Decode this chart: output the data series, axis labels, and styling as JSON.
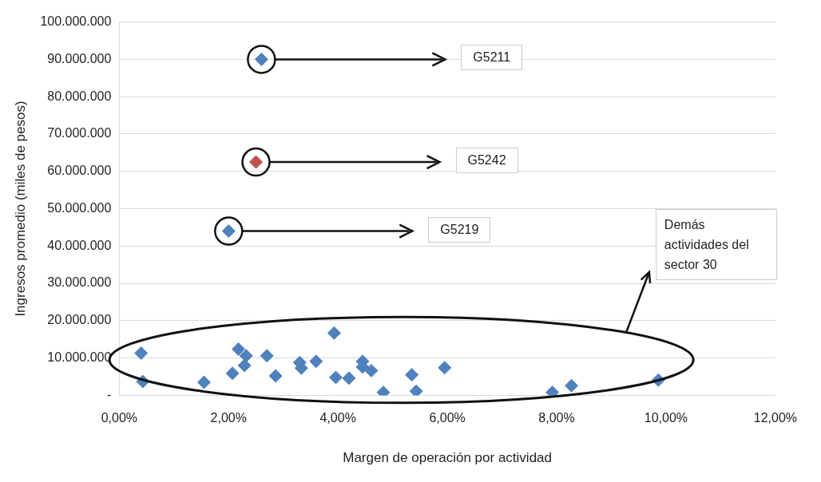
{
  "chart_data": {
    "type": "scatter",
    "xlabel": "Margen de operación por actividad",
    "ylabel": "Ingresos promedio (miles de pesos)",
    "xlim": [
      0,
      12
    ],
    "xticks": [
      {
        "value": 0,
        "label": "0,00%"
      },
      {
        "value": 2,
        "label": "2,00%"
      },
      {
        "value": 4,
        "label": "4,00%"
      },
      {
        "value": 6,
        "label": "6,00%"
      },
      {
        "value": 8,
        "label": "8,00%"
      },
      {
        "value": 10,
        "label": "10,00%"
      },
      {
        "value": 12,
        "label": "12,00%"
      }
    ],
    "ylim": [
      0,
      100000000
    ],
    "yticks": [
      {
        "value": 0,
        "label": "-"
      },
      {
        "value": 10000000,
        "label": "10.000.000"
      },
      {
        "value": 20000000,
        "label": "20.000.000"
      },
      {
        "value": 30000000,
        "label": "30.000.000"
      },
      {
        "value": 40000000,
        "label": "40.000.000"
      },
      {
        "value": 50000000,
        "label": "50.000.000"
      },
      {
        "value": 60000000,
        "label": "60.000.000"
      },
      {
        "value": 70000000,
        "label": "70.000.000"
      },
      {
        "value": 80000000,
        "label": "80.000.000"
      },
      {
        "value": 90000000,
        "label": "90.000.000"
      },
      {
        "value": 100000000,
        "label": "100.000.000"
      }
    ],
    "grid": "y",
    "legend": false,
    "marker": "diamond",
    "series": [
      {
        "color": "#4f81bd",
        "x": [
          0.4,
          0.43,
          1.55,
          2.07,
          2.18,
          2.32,
          2.29,
          2.7,
          2.86,
          3.3,
          3.33,
          3.6,
          3.93,
          3.96,
          4.2,
          4.45,
          4.45,
          4.61,
          4.83,
          5.35,
          5.43,
          5.95,
          7.92,
          8.27,
          9.86,
          2.6,
          2.0
        ],
        "values": [
          11300000,
          3700000,
          3500000,
          5900000,
          12400000,
          10600000,
          8000000,
          10600000,
          5200000,
          8800000,
          7300000,
          9100000,
          16700000,
          4800000,
          4600000,
          9100000,
          7600000,
          6600000,
          800000,
          5500000,
          1100000,
          7400000,
          800000,
          2600000,
          4100000,
          90000000,
          44000000
        ]
      },
      {
        "color": "#c0504d",
        "x": [
          2.5
        ],
        "values": [
          62500000
        ]
      }
    ],
    "annotations": [
      "G5211",
      "G5242",
      "G5219",
      "Demás actividades del sector 30"
    ]
  }
}
